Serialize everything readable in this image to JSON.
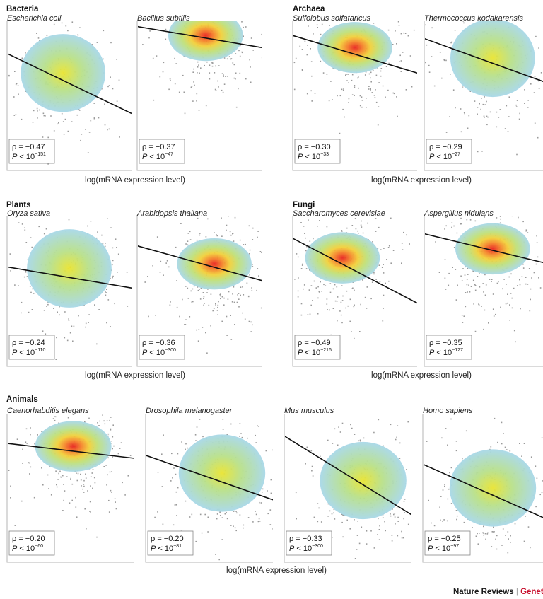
{
  "footer": {
    "journal": "Nature Reviews",
    "separator": "|",
    "section": "Geneti"
  },
  "colors": {
    "dots": "#9a9a9a",
    "fit_line": "#111111",
    "density_low": "#a8d8e8",
    "density_mid": "#e8e63c",
    "density_high": "#e8231e",
    "footer_accent": "#c8102e"
  },
  "chart_data": [
    {
      "type": "scatter",
      "group": "Bacteria",
      "title": "Escherichia coli",
      "xlabel": "log(mRNA expression level)",
      "stats": {
        "rho": "ρ = −0.47",
        "p_base": "P < 10",
        "p_exp": "−151"
      },
      "rho_value": -0.47,
      "density_peak": 0.55,
      "fit_line": {
        "x": [
          0.0,
          1.0
        ],
        "y": [
          0.78,
          0.38
        ]
      },
      "density_center": {
        "x": 0.45,
        "y": 0.65
      }
    },
    {
      "type": "scatter",
      "group": "Bacteria",
      "title": "Bacillus subtilis",
      "xlabel": "log(mRNA expression level)",
      "stats": {
        "rho": "ρ = −0.37",
        "p_base": "P < 10",
        "p_exp": "−47"
      },
      "rho_value": -0.37,
      "density_peak": 0.95,
      "fit_line": {
        "x": [
          0.0,
          1.0
        ],
        "y": [
          0.96,
          0.82
        ]
      },
      "density_center": {
        "x": 0.55,
        "y": 0.9
      }
    },
    {
      "type": "scatter",
      "group": "Archaea",
      "title": "Sulfolobus solfataricus",
      "xlabel": "log(mRNA expression level)",
      "stats": {
        "rho": "ρ = −0.30",
        "p_base": "P < 10",
        "p_exp": "−33"
      },
      "rho_value": -0.3,
      "density_peak": 0.9,
      "fit_line": {
        "x": [
          0.0,
          1.0
        ],
        "y": [
          0.9,
          0.65
        ]
      },
      "density_center": {
        "x": 0.5,
        "y": 0.82
      }
    },
    {
      "type": "scatter",
      "group": "Archaea",
      "title": "Thermococcus kodakarensis",
      "xlabel": "log(mRNA expression level)",
      "stats": {
        "rho": "ρ = −0.29",
        "p_base": "P < 10",
        "p_exp": "−27"
      },
      "rho_value": -0.29,
      "density_peak": 0.6,
      "fit_line": {
        "x": [
          0.0,
          1.0
        ],
        "y": [
          0.88,
          0.58
        ]
      },
      "density_center": {
        "x": 0.55,
        "y": 0.75
      }
    },
    {
      "type": "scatter",
      "group": "Plants",
      "title": "Oryza sativa",
      "xlabel": "log(mRNA expression level)",
      "stats": {
        "rho": "ρ = −0.24",
        "p_base": "P < 10",
        "p_exp": "−110"
      },
      "rho_value": -0.24,
      "density_peak": 0.55,
      "fit_line": {
        "x": [
          0.0,
          1.0
        ],
        "y": [
          0.66,
          0.52
        ]
      },
      "density_center": {
        "x": 0.5,
        "y": 0.65
      }
    },
    {
      "type": "scatter",
      "group": "Plants",
      "title": "Arabidopsis thaliana",
      "xlabel": "log(mRNA expression level)",
      "stats": {
        "rho": "ρ = −0.36",
        "p_base": "P < 10",
        "p_exp": "−300"
      },
      "rho_value": -0.36,
      "density_peak": 0.95,
      "fit_line": {
        "x": [
          0.0,
          1.0
        ],
        "y": [
          0.8,
          0.57
        ]
      },
      "density_center": {
        "x": 0.62,
        "y": 0.68
      }
    },
    {
      "type": "scatter",
      "group": "Fungi",
      "title": "Saccharomyces cerevisiae",
      "xlabel": "log(mRNA expression level)",
      "stats": {
        "rho": "ρ = −0.49",
        "p_base": "P < 10",
        "p_exp": "−216"
      },
      "rho_value": -0.49,
      "density_peak": 0.95,
      "fit_line": {
        "x": [
          0.0,
          1.0
        ],
        "y": [
          0.85,
          0.42
        ]
      },
      "density_center": {
        "x": 0.4,
        "y": 0.72
      }
    },
    {
      "type": "scatter",
      "group": "Fungi",
      "title": "Aspergillus nidulans",
      "xlabel": "log(mRNA expression level)",
      "stats": {
        "rho": "ρ = −0.35",
        "p_base": "P < 10",
        "p_exp": "−127"
      },
      "rho_value": -0.35,
      "density_peak": 0.95,
      "fit_line": {
        "x": [
          0.0,
          1.0
        ],
        "y": [
          0.88,
          0.68
        ]
      },
      "density_center": {
        "x": 0.55,
        "y": 0.78
      }
    },
    {
      "type": "scatter",
      "group": "Animals",
      "title": "Caenorhabditis elegans",
      "xlabel": "log(mRNA expression level)",
      "stats": {
        "rho": "ρ = −0.20",
        "p_base": "P < 10",
        "p_exp": "−60"
      },
      "rho_value": -0.2,
      "density_peak": 0.95,
      "fit_line": {
        "x": [
          0.0,
          1.0
        ],
        "y": [
          0.8,
          0.7
        ]
      },
      "density_center": {
        "x": 0.52,
        "y": 0.78
      }
    },
    {
      "type": "scatter",
      "group": "Animals",
      "title": "Drosophila melanogaster",
      "xlabel": "log(mRNA expression level)",
      "stats": {
        "rho": "ρ = −0.20",
        "p_base": "P < 10",
        "p_exp": "−81"
      },
      "rho_value": -0.2,
      "density_peak": 0.6,
      "fit_line": {
        "x": [
          0.0,
          1.0
        ],
        "y": [
          0.72,
          0.42
        ]
      },
      "density_center": {
        "x": 0.6,
        "y": 0.6
      }
    },
    {
      "type": "scatter",
      "group": "Animals",
      "title": "Mus musculus",
      "xlabel": "log(mRNA expression level)",
      "stats": {
        "rho": "ρ = −0.33",
        "p_base": "P < 10",
        "p_exp": "−300"
      },
      "rho_value": -0.33,
      "density_peak": 0.6,
      "fit_line": {
        "x": [
          0.0,
          1.0
        ],
        "y": [
          0.85,
          0.32
        ]
      },
      "density_center": {
        "x": 0.62,
        "y": 0.55
      }
    },
    {
      "type": "scatter",
      "group": "Animals",
      "title": "Homo sapiens",
      "xlabel": "log(mRNA expression level)",
      "stats": {
        "rho": "ρ = −0.25",
        "p_base": "P < 10",
        "p_exp": "−97"
      },
      "rho_value": -0.25,
      "density_peak": 0.6,
      "fit_line": {
        "x": [
          0.0,
          1.0
        ],
        "y": [
          0.66,
          0.28
        ]
      },
      "density_center": {
        "x": 0.55,
        "y": 0.5
      }
    }
  ]
}
